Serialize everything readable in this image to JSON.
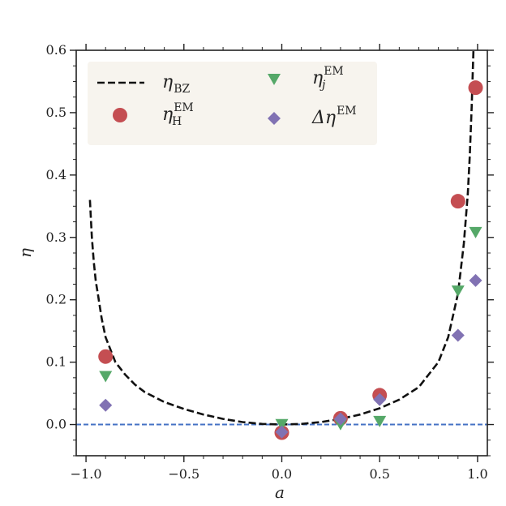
{
  "chart_data": {
    "type": "scatter",
    "xlabel": "a",
    "ylabel": "η",
    "xlim": [
      -1.05,
      1.05
    ],
    "ylim": [
      -0.05,
      0.6
    ],
    "x_ticks": [
      -1.0,
      -0.5,
      0.0,
      0.5,
      1.0
    ],
    "x_tick_labels": [
      "−1.0",
      "−0.5",
      "0.0",
      "0.5",
      "1.0"
    ],
    "y_ticks": [
      0.0,
      0.1,
      0.2,
      0.3,
      0.4,
      0.5,
      0.6
    ],
    "y_tick_labels": [
      "0.0",
      "0.1",
      "0.2",
      "0.3",
      "0.4",
      "0.5",
      "0.6"
    ],
    "reference_line": {
      "y": 0.0,
      "color": "#4472c4",
      "style": "dashed"
    },
    "legend_position": "top-left",
    "series": [
      {
        "name": "η_BZ",
        "legend": {
          "base": "η",
          "sub": "BZ",
          "sup": ""
        },
        "kind": "line",
        "color": "#111111",
        "x": [
          -0.98,
          -0.97,
          -0.96,
          -0.95,
          -0.94,
          -0.92,
          -0.9,
          -0.85,
          -0.8,
          -0.75,
          -0.7,
          -0.6,
          -0.5,
          -0.4,
          -0.3,
          -0.2,
          -0.1,
          0.0,
          0.1,
          0.2,
          0.3,
          0.4,
          0.5,
          0.6,
          0.7,
          0.8,
          0.85,
          0.9,
          0.93,
          0.95,
          0.96,
          0.97,
          0.98
        ],
        "y": [
          0.36,
          0.3,
          0.26,
          0.23,
          0.21,
          0.17,
          0.14,
          0.1,
          0.08,
          0.064,
          0.052,
          0.036,
          0.025,
          0.016,
          0.009,
          0.004,
          0.001,
          0.0,
          0.001,
          0.004,
          0.009,
          0.016,
          0.026,
          0.04,
          0.06,
          0.1,
          0.14,
          0.21,
          0.29,
          0.37,
          0.43,
          0.51,
          0.61
        ]
      },
      {
        "name": "η_H^EM",
        "legend": {
          "base": "η",
          "sub": "H",
          "sup": "EM"
        },
        "kind": "scatter",
        "marker": "circle",
        "color": "#c44e52",
        "x": [
          -0.9,
          0.0,
          0.3,
          0.5,
          0.9,
          0.99
        ],
        "y": [
          0.109,
          -0.013,
          0.01,
          0.047,
          0.358,
          0.54
        ]
      },
      {
        "name": "η_j^EM",
        "legend": {
          "base": "η",
          "sub": "j",
          "sup": "EM"
        },
        "kind": "scatter",
        "marker": "triangle-down",
        "color": "#55a868",
        "x": [
          -0.9,
          0.0,
          0.3,
          0.5,
          0.9,
          0.99
        ],
        "y": [
          0.078,
          0.001,
          0.001,
          0.006,
          0.215,
          0.309
        ]
      },
      {
        "name": "Δη^EM",
        "legend": {
          "base": "Δη",
          "sub": "",
          "sup": "EM"
        },
        "kind": "scatter",
        "marker": "diamond",
        "color": "#8172b3",
        "x": [
          -0.9,
          0.0,
          0.3,
          0.5,
          0.9,
          0.99
        ],
        "y": [
          0.031,
          -0.012,
          0.009,
          0.04,
          0.143,
          0.231
        ]
      }
    ]
  }
}
